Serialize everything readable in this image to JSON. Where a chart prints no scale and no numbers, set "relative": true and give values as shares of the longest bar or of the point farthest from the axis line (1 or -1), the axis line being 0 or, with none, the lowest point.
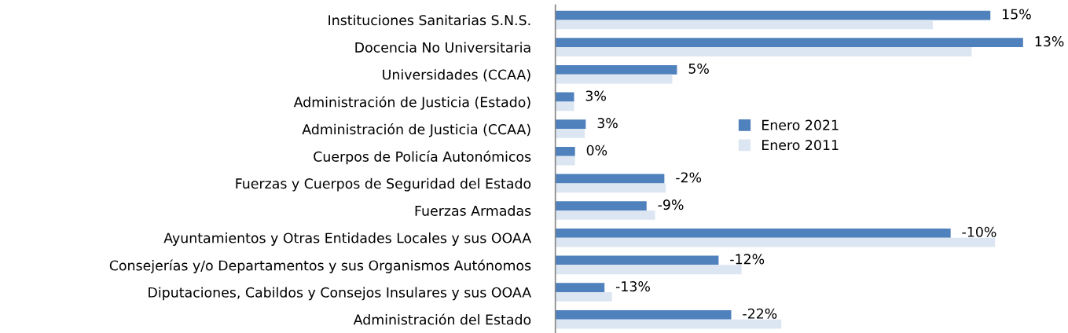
{
  "chart_data": {
    "type": "bar",
    "orientation": "horizontal",
    "relative": true,
    "legend": "center",
    "categories": [
      "Instituciones Sanitarias S.N.S.",
      "Docencia No Universitaria",
      "Universidades (CCAA)",
      "Administración de Justicia (Estado)",
      "Administración de Justicia (CCAA)",
      "Cuerpos de Policía Autonómicos",
      "Fuerzas y Cuerpos de Seguridad del Estado",
      "Fuerzas Armadas",
      "Ayuntamientos y Otras Entidades Locales y sus OOAA",
      "Consejerías y/o Departamentos y sus Organismos Autónomos",
      "Diputaciones, Cabildos y Consejos Insulares y sus OOAA",
      "Administración del Estado"
    ],
    "series": [
      {
        "name": "Enero 2021",
        "color": "#4f81bd",
        "values": [
          0.93,
          1,
          0.26,
          0.04,
          0.065,
          0.042,
          0.233,
          0.195,
          0.845,
          0.349,
          0.105,
          0.376
        ]
      },
      {
        "name": "Enero 2011",
        "color": "#dce6f2",
        "values": [
          0.807,
          0.89,
          0.25,
          0.04,
          0.063,
          0.042,
          0.236,
          0.213,
          0.94,
          0.398,
          0.121,
          0.483
        ]
      }
    ],
    "annotations": [
      "15%",
      "13%",
      "5%",
      "3%",
      "3%",
      "0%",
      "-2%",
      "-9%",
      "-10%",
      "-12%",
      "-13%",
      "-22%"
    ]
  }
}
